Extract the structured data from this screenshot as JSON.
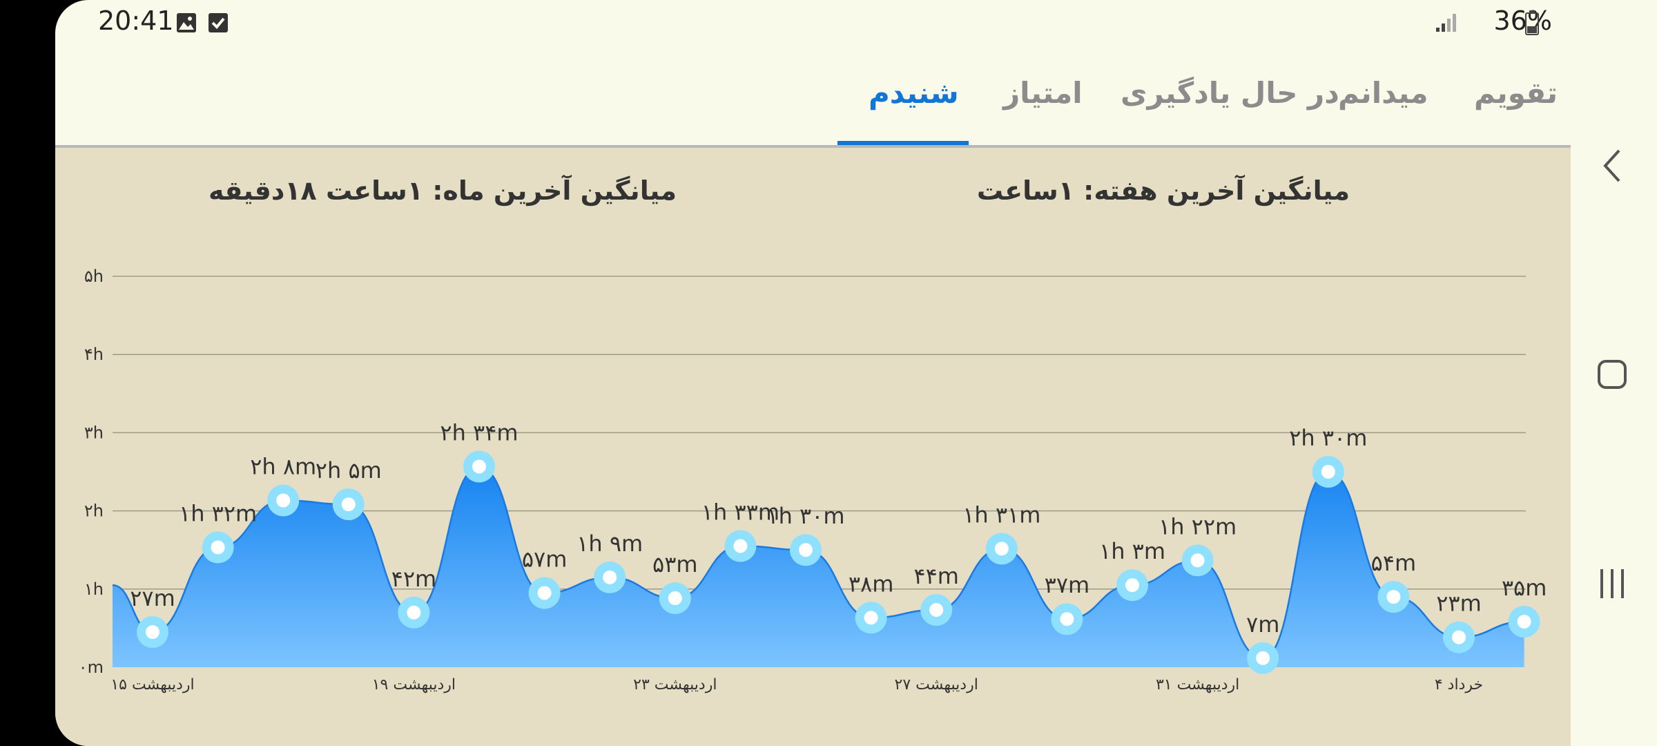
{
  "status_bar": {
    "time": "20:41",
    "battery": "36%"
  },
  "tabs": [
    {
      "label": "تقویم",
      "active": false
    },
    {
      "label": "میدانم",
      "active": false
    },
    {
      "label": "در حال یادگیری",
      "active": false
    },
    {
      "label": "امتیاز",
      "active": false
    },
    {
      "label": "شنیدم",
      "active": true
    }
  ],
  "averages": {
    "week": "میانگین آخرین هفته: ۱ساعت",
    "month": "میانگین آخرین ماه: ۱ساعت  ۱۸دقیقه"
  },
  "chart_data": {
    "type": "area",
    "ylim": [
      0,
      300
    ],
    "y_tick_labels": [
      "۰m",
      "۱h",
      "۲h",
      "۳h",
      "۴h",
      "۵h"
    ],
    "y_tick_values": [
      0,
      60,
      120,
      180,
      240,
      300
    ],
    "x_tick_labels": [
      "۱۵ اردیبهشت",
      "۱۹ اردیبهشت",
      "۲۳ اردیبهشت",
      "۲۷ اردیبهشت",
      "۳۱ اردیبهشت",
      "۴ خرداد"
    ],
    "x_tick_indices": [
      0,
      4,
      8,
      12,
      16,
      20
    ],
    "start_value": 63,
    "values": [
      27,
      92,
      128,
      125,
      42,
      154,
      57,
      69,
      53,
      93,
      90,
      38,
      44,
      91,
      37,
      63,
      82,
      7,
      150,
      54,
      23,
      35
    ],
    "labels": [
      "۲۷m",
      "۱h ۳۲m",
      "۲h ۸m",
      "۲h ۵m",
      "۴۲m",
      "۲h ۳۴m",
      "۵۷m",
      "۱h ۹m",
      "۵۳m",
      "۱h ۳۳m",
      "۱h ۳۰m",
      "۳۸m",
      "۴۴m",
      "۱h ۳۱m",
      "۳۷m",
      "۱h ۳m",
      "۱h ۲۲m",
      "۷m",
      "۲h ۳۰m",
      "۵۴m",
      "۲۳m",
      "۳۵m"
    ],
    "colors": {
      "line": "#1a7ae0",
      "fill_top": "#1683f0",
      "fill_bottom": "#7cc4ff",
      "point_outer": "#8fe0ff",
      "point_inner": "#ffffff",
      "grid": "#9e9a8a"
    },
    "grid": true
  }
}
